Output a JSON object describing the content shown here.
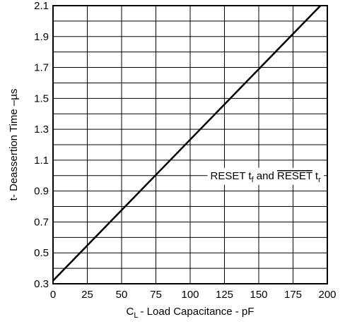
{
  "chart_data": {
    "type": "line",
    "title": "",
    "xlabel": "- Load Capacitance - pF",
    "xlabel_main": "C",
    "xlabel_sub": "L",
    "ylabel": "t- Deassertion Time –µs",
    "xlim": [
      0,
      200
    ],
    "ylim": [
      0.3,
      2.1
    ],
    "grid": true,
    "x_ticks": [
      0,
      25,
      50,
      75,
      100,
      125,
      150,
      175,
      200
    ],
    "x_tick_labels": [
      "0",
      "25",
      "50",
      "75",
      "100",
      "125",
      "150",
      "175",
      "200"
    ],
    "y_ticks": [
      0.3,
      0.4,
      0.5,
      0.6,
      0.7,
      0.8,
      0.9,
      1.0,
      1.1,
      1.2,
      1.3,
      1.4,
      1.5,
      1.6,
      1.7,
      1.8,
      1.9,
      2.0,
      2.1
    ],
    "y_tick_labels": [
      "0.3",
      "0.5",
      "0.7",
      "0.9",
      "1.1",
      "1.3",
      "1.5",
      "1.7",
      "1.9",
      "2.1"
    ],
    "series": [
      {
        "x": [
          0,
          195
        ],
        "y": [
          0.32,
          2.1
        ],
        "color": "#000000"
      }
    ],
    "annotation": {
      "part1": "RESET t",
      "part1_sub": "f",
      "part2": " and ",
      "part3": "RESET",
      "part4": " t",
      "part4_sub": "r",
      "x": 125,
      "y": 1.0
    }
  }
}
